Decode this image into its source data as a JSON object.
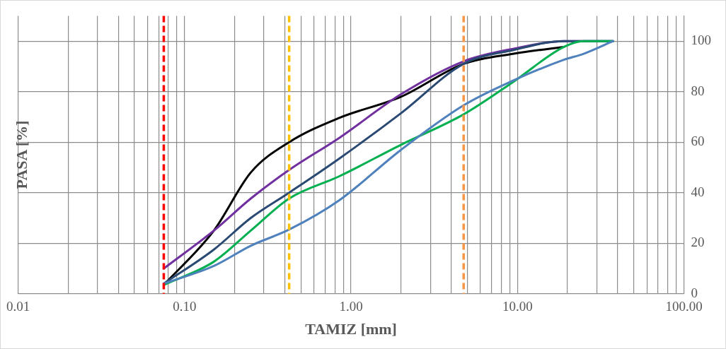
{
  "chart_data": {
    "type": "line",
    "xlabel": "TAMIZ [mm]",
    "ylabel": "PASA [%]",
    "log": "x",
    "grid": true,
    "legend": false,
    "marker": "none",
    "line_style": "solid",
    "xlim": [
      0.01,
      100
    ],
    "xticks": [
      {
        "value": 0.01,
        "label": "0.01"
      },
      {
        "value": 0.02,
        "label": null
      },
      {
        "value": 0.03,
        "label": null
      },
      {
        "value": 0.04,
        "label": null
      },
      {
        "value": 0.05,
        "label": null
      },
      {
        "value": 0.06,
        "label": null
      },
      {
        "value": 0.07,
        "label": null
      },
      {
        "value": 0.08,
        "label": null
      },
      {
        "value": 0.09,
        "label": null
      },
      {
        "value": 0.1,
        "label": "0.10"
      },
      {
        "value": 0.2,
        "label": null
      },
      {
        "value": 0.3,
        "label": null
      },
      {
        "value": 0.4,
        "label": null
      },
      {
        "value": 0.5,
        "label": null
      },
      {
        "value": 0.6,
        "label": null
      },
      {
        "value": 0.7,
        "label": null
      },
      {
        "value": 0.8,
        "label": null
      },
      {
        "value": 0.9,
        "label": null
      },
      {
        "value": 1,
        "label": "1.00"
      },
      {
        "value": 2,
        "label": null
      },
      {
        "value": 3,
        "label": null
      },
      {
        "value": 4,
        "label": null
      },
      {
        "value": 5,
        "label": null
      },
      {
        "value": 6,
        "label": null
      },
      {
        "value": 7,
        "label": null
      },
      {
        "value": 8,
        "label": null
      },
      {
        "value": 9,
        "label": null
      },
      {
        "value": 10,
        "label": "10.00"
      },
      {
        "value": 20,
        "label": null
      },
      {
        "value": 30,
        "label": null
      },
      {
        "value": 40,
        "label": null
      },
      {
        "value": 50,
        "label": null
      },
      {
        "value": 60,
        "label": null
      },
      {
        "value": 70,
        "label": null
      },
      {
        "value": 80,
        "label": null
      },
      {
        "value": 90,
        "label": null
      },
      {
        "value": 100,
        "label": "100.00"
      }
    ],
    "ylim": [
      0,
      110
    ],
    "yticks": [
      0,
      20,
      40,
      60,
      80,
      100
    ],
    "x": [
      0.075,
      0.15,
      0.25,
      0.425,
      0.85,
      2,
      4.75,
      9.5,
      19,
      25,
      37.5
    ],
    "series": [
      {
        "color": "#4f81bd",
        "values": [
          4,
          11,
          19,
          25.4,
          37,
          57,
          74.6,
          84.5,
          92.6,
          95,
          100
        ]
      },
      {
        "color": "#00b050",
        "values": [
          3.5,
          12.7,
          25,
          37.7,
          46.5,
          59,
          71,
          84,
          97.7,
          100,
          100
        ]
      },
      {
        "color": "#2a4a73",
        "values": [
          4,
          17.5,
          30,
          40,
          53.5,
          71.5,
          91,
          96.5,
          100,
          100,
          100
        ]
      },
      {
        "color": "#7030a0",
        "values": [
          10,
          25,
          37.7,
          49,
          61.7,
          79,
          92,
          97,
          100,
          100,
          100
        ]
      },
      {
        "color": "#000000",
        "values": [
          3.5,
          25,
          48,
          60,
          69.6,
          78,
          91,
          95,
          97.7,
          null,
          null
        ]
      }
    ],
    "ref_lines": [
      {
        "axis": "x",
        "value": 0.075,
        "color": "#ff0000",
        "line_style": "dashed"
      },
      {
        "axis": "x",
        "value": 0.425,
        "color": "#ffc000",
        "line_style": "dashed"
      },
      {
        "axis": "x",
        "value": 4.75,
        "color": "#f79646",
        "line_style": "dashed"
      }
    ]
  }
}
